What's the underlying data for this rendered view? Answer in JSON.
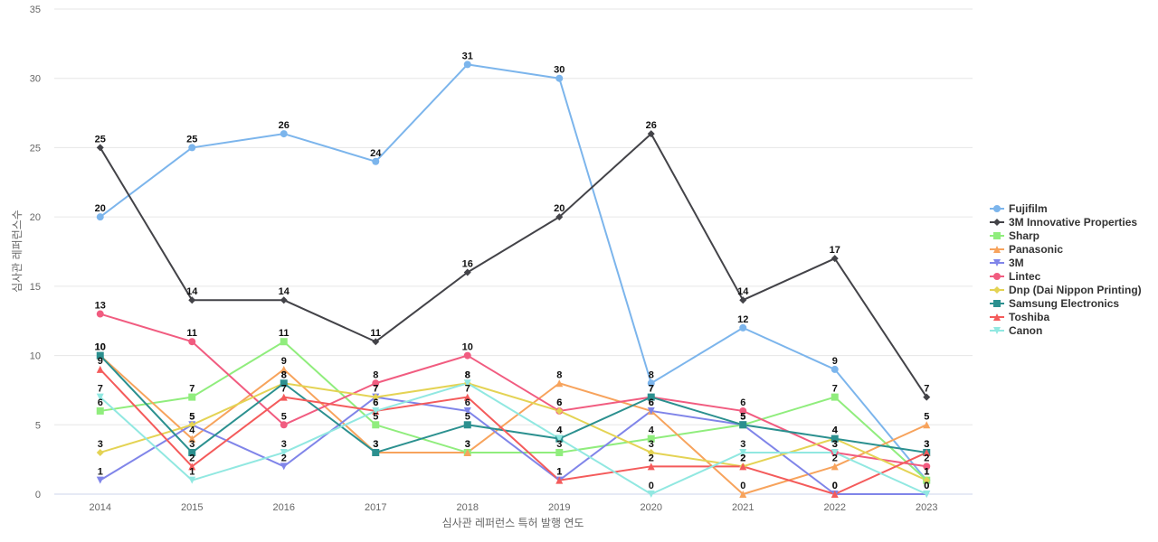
{
  "chart_data": {
    "type": "line",
    "title": "",
    "xlabel": "심사관 레퍼런스 특허 발행 연도",
    "ylabel": "심사관 레퍼런스수",
    "ylim": [
      0,
      35
    ],
    "yticks": [
      0,
      5,
      10,
      15,
      20,
      25,
      30,
      35
    ],
    "grid": "horizontal",
    "legend_position": "right",
    "categories": [
      "2014",
      "2015",
      "2016",
      "2017",
      "2018",
      "2019",
      "2020",
      "2021",
      "2022",
      "2023"
    ],
    "series": [
      {
        "name": "Fujifilm",
        "color": "#7cb5ec",
        "marker": "circle",
        "values": [
          20,
          25,
          26,
          24,
          31,
          30,
          8,
          12,
          9,
          1
        ]
      },
      {
        "name": "3M Innovative Properties",
        "color": "#434348",
        "marker": "diamond",
        "values": [
          25,
          14,
          14,
          11,
          16,
          20,
          26,
          14,
          17,
          7
        ]
      },
      {
        "name": "Sharp",
        "color": "#90ed7d",
        "marker": "square",
        "values": [
          6,
          7,
          11,
          5,
          3,
          3,
          4,
          5,
          7,
          1
        ]
      },
      {
        "name": "Panasonic",
        "color": "#f7a35c",
        "marker": "triangle",
        "values": [
          10,
          4,
          9,
          3,
          3,
          8,
          6,
          0,
          2,
          5
        ]
      },
      {
        "name": "3M",
        "color": "#8085e9",
        "marker": "triangle-down",
        "values": [
          1,
          5,
          2,
          7,
          6,
          1,
          6,
          5,
          0,
          0
        ]
      },
      {
        "name": "Lintec",
        "color": "#f15c80",
        "marker": "circle",
        "values": [
          13,
          11,
          5,
          8,
          10,
          6,
          7,
          6,
          3,
          2
        ]
      },
      {
        "name": "Dnp (Dai Nippon Printing)",
        "color": "#e4d354",
        "marker": "diamond",
        "values": [
          3,
          5,
          8,
          7,
          8,
          6,
          3,
          2,
          4,
          1
        ]
      },
      {
        "name": "Samsung Electronics",
        "color": "#2b908f",
        "marker": "square",
        "values": [
          10,
          3,
          8,
          3,
          5,
          4,
          7,
          5,
          4,
          3
        ]
      },
      {
        "name": "Toshiba",
        "color": "#f45b5b",
        "marker": "triangle",
        "values": [
          9,
          2,
          7,
          6,
          7,
          1,
          2,
          2,
          0,
          3
        ]
      },
      {
        "name": "Canon",
        "color": "#91e8e1",
        "marker": "triangle-down",
        "values": [
          7,
          1,
          3,
          6,
          8,
          4,
          0,
          3,
          3,
          0
        ]
      }
    ]
  }
}
